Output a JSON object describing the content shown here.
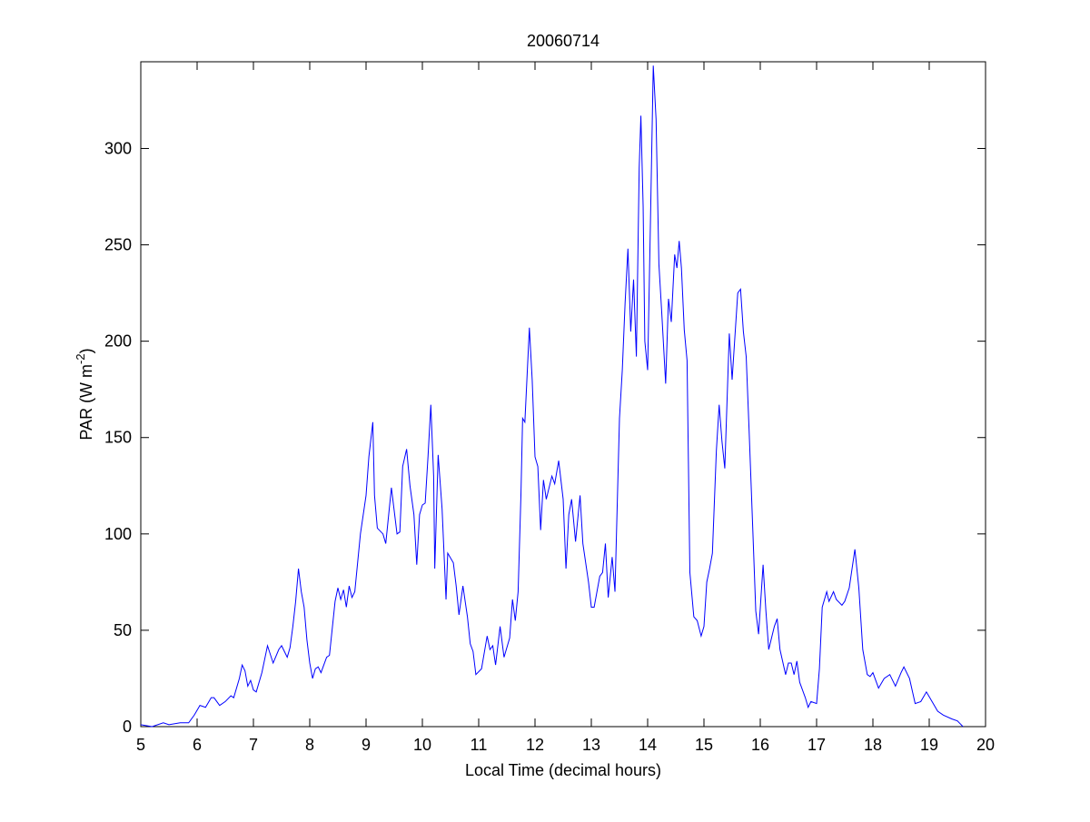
{
  "chart_data": {
    "type": "line",
    "title": "20060714",
    "xlabel": "Local Time (decimal hours)",
    "ylabel_parts": [
      "PAR (W m",
      "-2",
      ")"
    ],
    "xlim": [
      5,
      20
    ],
    "ylim": [
      0,
      345
    ],
    "xticks": [
      5,
      6,
      7,
      8,
      9,
      10,
      11,
      12,
      13,
      14,
      15,
      16,
      17,
      18,
      19,
      20
    ],
    "yticks": [
      0,
      50,
      100,
      150,
      200,
      250,
      300
    ],
    "grid": false,
    "series": [
      {
        "name": "PAR",
        "color": "#0000ff",
        "x": [
          5.0,
          5.2,
          5.4,
          5.5,
          5.7,
          5.85,
          5.95,
          6.05,
          6.15,
          6.25,
          6.3,
          6.4,
          6.5,
          6.6,
          6.65,
          6.75,
          6.8,
          6.85,
          6.9,
          6.95,
          7.0,
          7.05,
          7.15,
          7.25,
          7.35,
          7.45,
          7.5,
          7.6,
          7.65,
          7.7,
          7.75,
          7.8,
          7.85,
          7.9,
          7.95,
          8.0,
          8.05,
          8.1,
          8.15,
          8.2,
          8.3,
          8.35,
          8.45,
          8.5,
          8.55,
          8.6,
          8.65,
          8.7,
          8.75,
          8.8,
          8.9,
          9.0,
          9.05,
          9.12,
          9.15,
          9.2,
          9.3,
          9.35,
          9.45,
          9.55,
          9.6,
          9.65,
          9.72,
          9.78,
          9.85,
          9.9,
          9.95,
          10.0,
          10.05,
          10.1,
          10.15,
          10.2,
          10.22,
          10.28,
          10.35,
          10.42,
          10.45,
          10.55,
          10.6,
          10.65,
          10.72,
          10.8,
          10.85,
          10.9,
          10.95,
          11.05,
          11.15,
          11.2,
          11.25,
          11.3,
          11.38,
          11.45,
          11.55,
          11.6,
          11.65,
          11.7,
          11.75,
          11.78,
          11.82,
          11.9,
          11.95,
          12.0,
          12.05,
          12.1,
          12.15,
          12.2,
          12.3,
          12.35,
          12.42,
          12.5,
          12.55,
          12.6,
          12.65,
          12.72,
          12.8,
          12.85,
          12.95,
          13.0,
          13.05,
          13.15,
          13.2,
          13.25,
          13.3,
          13.37,
          13.42,
          13.5,
          13.55,
          13.6,
          13.65,
          13.7,
          13.75,
          13.8,
          13.85,
          13.88,
          13.92,
          13.95,
          14.0,
          14.05,
          14.1,
          14.15,
          14.2,
          14.25,
          14.32,
          14.37,
          14.42,
          14.48,
          14.52,
          14.56,
          14.6,
          14.65,
          14.7,
          14.75,
          14.82,
          14.88,
          14.95,
          15.0,
          15.05,
          15.1,
          15.15,
          15.22,
          15.27,
          15.32,
          15.37,
          15.45,
          15.5,
          15.6,
          15.65,
          15.7,
          15.75,
          15.8,
          15.87,
          15.92,
          15.97,
          16.05,
          16.1,
          16.15,
          16.25,
          16.3,
          16.35,
          16.45,
          16.5,
          16.55,
          16.6,
          16.65,
          16.7,
          16.8,
          16.85,
          16.9,
          17.0,
          17.05,
          17.1,
          17.18,
          17.22,
          17.3,
          17.35,
          17.45,
          17.5,
          17.58,
          17.68,
          17.75,
          17.82,
          17.9,
          17.95,
          18.0,
          18.05,
          18.1,
          18.2,
          18.3,
          18.4,
          18.5,
          18.55,
          18.65,
          18.75,
          18.85,
          18.95,
          19.05,
          19.15,
          19.25,
          19.4,
          19.5,
          19.6
        ],
        "values": [
          1,
          0,
          2,
          1,
          2,
          2,
          6,
          11,
          10,
          15,
          15,
          11,
          13,
          16,
          15,
          25,
          32,
          29,
          21,
          24,
          19,
          18,
          28,
          42,
          33,
          40,
          42,
          36,
          41,
          52,
          65,
          82,
          70,
          62,
          45,
          33,
          25,
          30,
          31,
          28,
          36,
          37,
          65,
          72,
          66,
          71,
          62,
          73,
          67,
          70,
          100,
          120,
          140,
          158,
          120,
          103,
          100,
          95,
          124,
          100,
          101,
          135,
          144,
          125,
          110,
          84,
          110,
          115,
          116,
          140,
          167,
          130,
          82,
          141,
          113,
          66,
          90,
          85,
          73,
          58,
          73,
          57,
          43,
          39,
          27,
          30,
          47,
          40,
          42,
          32,
          52,
          36,
          46,
          66,
          55,
          70,
          120,
          160,
          158,
          207,
          180,
          140,
          135,
          102,
          128,
          118,
          130,
          126,
          138,
          118,
          82,
          110,
          118,
          96,
          120,
          95,
          75,
          62,
          62,
          78,
          80,
          95,
          67,
          88,
          70,
          160,
          185,
          220,
          248,
          205,
          232,
          192,
          290,
          317,
          270,
          200,
          185,
          262,
          343,
          315,
          240,
          215,
          178,
          222,
          210,
          245,
          238,
          252,
          238,
          206,
          190,
          80,
          57,
          55,
          47,
          52,
          75,
          82,
          90,
          143,
          167,
          148,
          134,
          204,
          180,
          225,
          227,
          205,
          192,
          155,
          100,
          60,
          48,
          84,
          60,
          40,
          52,
          56,
          40,
          27,
          33,
          33,
          27,
          34,
          23,
          15,
          10,
          13,
          12,
          30,
          62,
          70,
          65,
          70,
          66,
          63,
          65,
          72,
          92,
          72,
          40,
          27,
          26,
          28,
          24,
          20,
          25,
          27,
          21,
          28,
          31,
          25,
          12,
          13,
          18,
          13,
          8,
          6,
          4,
          3,
          0
        ]
      }
    ]
  }
}
